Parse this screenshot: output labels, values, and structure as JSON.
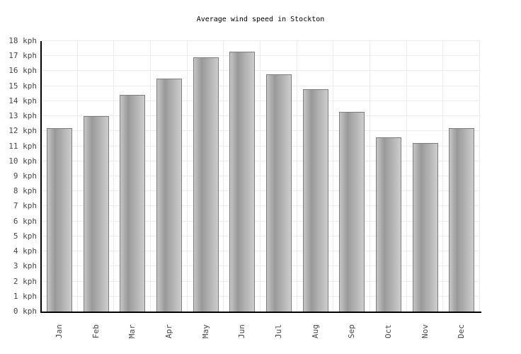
{
  "chart_data": {
    "type": "bar",
    "title": "Average wind speed in Stockton",
    "categories": [
      "Jan",
      "Feb",
      "Mar",
      "Apr",
      "May",
      "Jun",
      "Jul",
      "Aug",
      "Sep",
      "Oct",
      "Nov",
      "Dec"
    ],
    "values": [
      12.2,
      13.0,
      14.4,
      15.5,
      16.9,
      17.3,
      15.8,
      14.8,
      13.3,
      11.6,
      11.2,
      12.2
    ],
    "unit": "kph",
    "ytick_suffix": " kph",
    "ylim": [
      0,
      18
    ],
    "ytick_step": 1,
    "xlabel": "",
    "ylabel": "",
    "grid": true,
    "legend": "none",
    "bar_gradient": [
      "#c6c6c6",
      "#999999",
      "#cdcdcd"
    ],
    "bar_border_color": "#7d7d7d",
    "axis_color": "#000000",
    "grid_color": "#ececec",
    "tick_label_color": "#474747",
    "title_color": "#000000",
    "background_color": "#ffffff"
  }
}
